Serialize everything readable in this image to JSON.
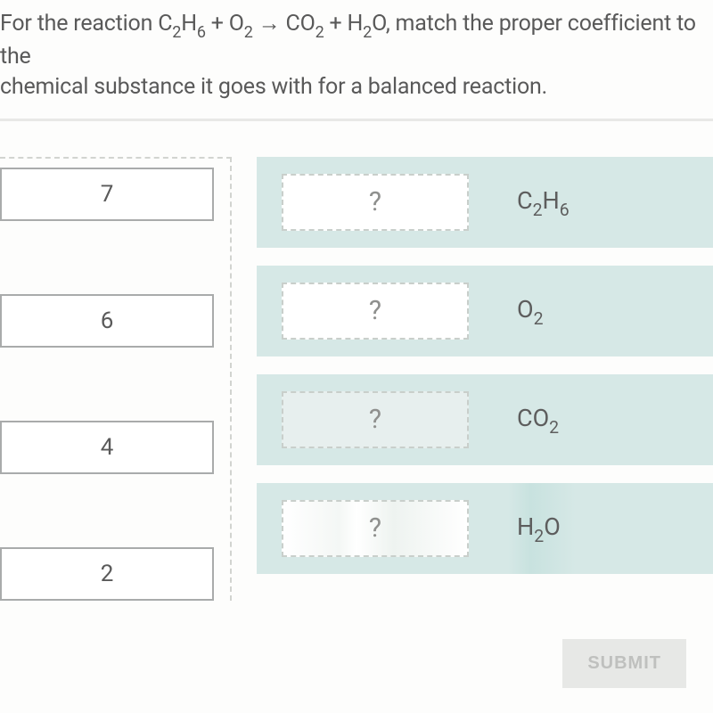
{
  "prompt": {
    "line1_prefix": "For the reaction ",
    "reactant1": "C2H6",
    "plus1": " + ",
    "reactant2": "O2",
    "arrow": " → ",
    "product1": "CO2",
    "plus2": " + ",
    "product2": "H2O",
    "line1_suffix": ", match the proper coefficient to the",
    "line2": "chemical substance it goes with for a balanced reaction."
  },
  "source_choices": [
    "7",
    "6",
    "4",
    "2"
  ],
  "placeholder": "?",
  "targets": [
    {
      "formula": "C2H6"
    },
    {
      "formula": "O2"
    },
    {
      "formula": "CO2"
    },
    {
      "formula": "H2O"
    }
  ],
  "submit_label": "SUBMIT",
  "colors": {
    "target_row_bg": "#d6e8e6",
    "card_border": "#a9abab",
    "text": "#5a5a5a",
    "drop_border": "#c9cfcb",
    "submit_bg": "#e7e8e6",
    "submit_text": "#bfc0be"
  }
}
